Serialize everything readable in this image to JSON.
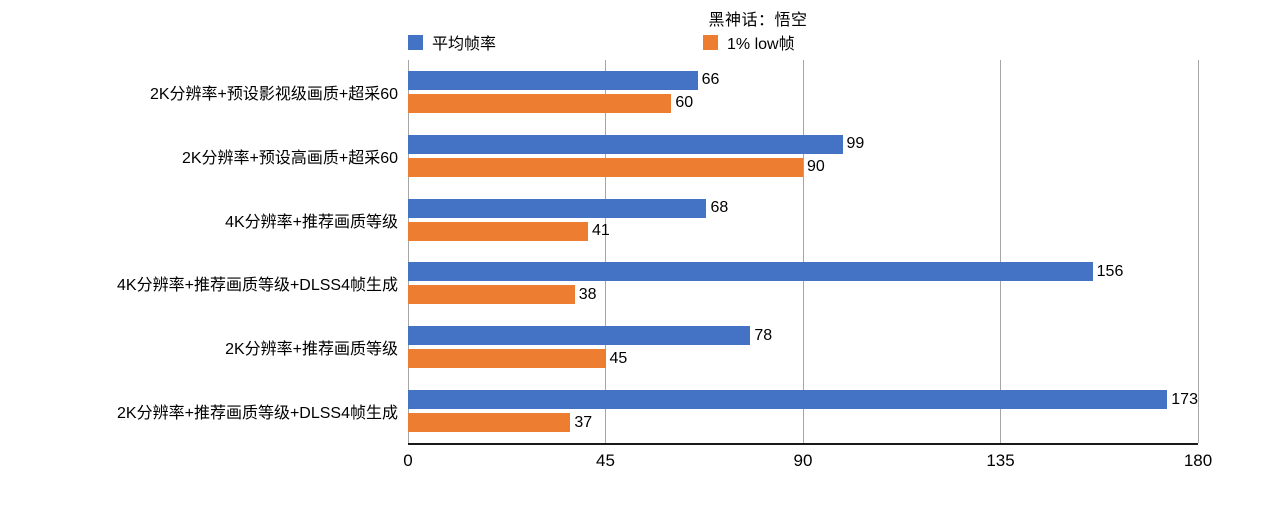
{
  "chart_data": {
    "type": "bar",
    "orientation": "horizontal",
    "title": "黑神话：悟空",
    "categories": [
      "2K分辨率+预设影视级画质+超采60",
      "2K分辨率+预设高画质+超采60",
      "4K分辨率+推荐画质等级",
      "4K分辨率+推荐画质等级+DLSS4帧生成",
      "2K分辨率+推荐画质等级",
      "2K分辨率+推荐画质等级+DLSS4帧生成"
    ],
    "series": [
      {
        "name": "平均帧率",
        "color": "#4472C4",
        "values": [
          66,
          99,
          68,
          156,
          78,
          173
        ]
      },
      {
        "name": "1% low帧",
        "color": "#ED7D31",
        "values": [
          60,
          90,
          41,
          38,
          45,
          37
        ]
      }
    ],
    "xlim": [
      0,
      180
    ],
    "x_ticks": [
      0,
      45,
      90,
      135,
      180
    ],
    "grid": true,
    "legend_position": "top",
    "value_labels": true,
    "colors": {
      "gridline": "#a6a6a6",
      "axis": "#1a1a1a",
      "text": "#000000",
      "background": "#ffffff"
    }
  }
}
